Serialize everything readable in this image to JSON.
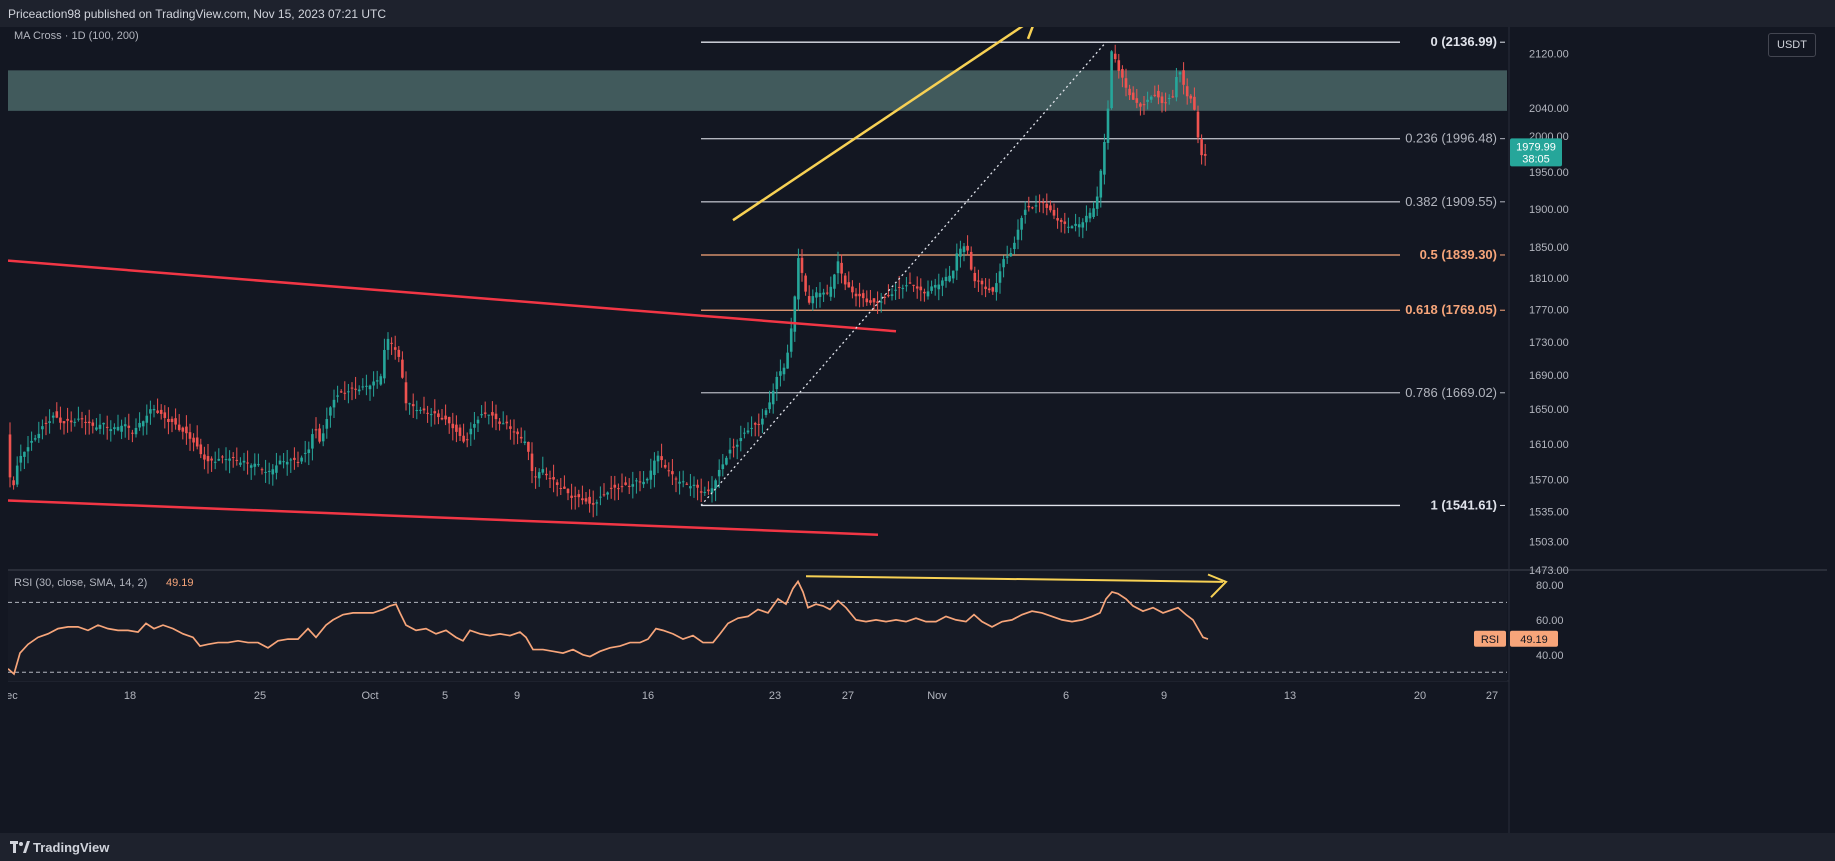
{
  "header": {
    "published": "Priceaction98 published on TradingView.com, Nov 15, 2023 07:21 UTC"
  },
  "footer": {
    "brand": "TradingView"
  },
  "indicator": {
    "ma_label": "MA Cross · 1D (100, 200)"
  },
  "currency_button": "USDT",
  "colors": {
    "background": "#131722",
    "up": "#26a69a",
    "down": "#ef5350",
    "trendline": "#f23645",
    "arrow": "#f7d154",
    "fib_white": "#e0e3eb",
    "fib_orange": "#f7a57a",
    "rsi": "#f7a57a",
    "zone": "#4a6666"
  },
  "chart_data": {
    "type": "candlestick",
    "symbol_quote": "USDT",
    "timeframe": "1D",
    "ylim": [
      1473,
      2160
    ],
    "price_ticks": [
      "2120.00",
      "2040.00",
      "2000.00",
      "1950.00",
      "1900.00",
      "1850.00",
      "1810.00",
      "1770.00",
      "1730.00",
      "1690.00",
      "1650.00",
      "1610.00",
      "1570.00",
      "1535.00",
      "1503.00",
      "1473.00"
    ],
    "date_ticks": [
      "18",
      "25",
      "Oct",
      "5",
      "9",
      "16",
      "23",
      "27",
      "Nov",
      "6",
      "9",
      "13",
      "20",
      "27",
      "Dec"
    ],
    "last_price": "1979.99",
    "countdown": "38:05",
    "fib_levels": [
      {
        "label": "0 (2136.99)",
        "price": 2136.99,
        "color": "#e0e3eb",
        "bold": true
      },
      {
        "label": "0.236 (1996.48)",
        "price": 1996.48,
        "color": "#b2b5be",
        "bold": false
      },
      {
        "label": "0.382 (1909.55)",
        "price": 1909.55,
        "color": "#b2b5be",
        "bold": false
      },
      {
        "label": "0.5 (1839.30)",
        "price": 1839.3,
        "color": "#f7a57a",
        "bold": true
      },
      {
        "label": "0.618 (1769.05)",
        "price": 1769.05,
        "color": "#f7a57a",
        "bold": true
      },
      {
        "label": "0.786 (1669.02)",
        "price": 1669.02,
        "color": "#b2b5be",
        "bold": false
      },
      {
        "label": "1 (1541.61)",
        "price": 1541.61,
        "color": "#e0e3eb",
        "bold": true
      }
    ],
    "resistance_zone": [
      2036,
      2095
    ],
    "price_path": [
      [
        0,
        1620
      ],
      [
        3,
        1548
      ],
      [
        8,
        1582
      ],
      [
        15,
        1600
      ],
      [
        25,
        1612
      ],
      [
        35,
        1628
      ],
      [
        45,
        1640
      ],
      [
        55,
        1632
      ],
      [
        65,
        1635
      ],
      [
        75,
        1638
      ],
      [
        85,
        1630
      ],
      [
        95,
        1634
      ],
      [
        105,
        1628
      ],
      [
        115,
        1635
      ],
      [
        125,
        1625
      ],
      [
        135,
        1638
      ],
      [
        145,
        1652
      ],
      [
        155,
        1640
      ],
      [
        165,
        1632
      ],
      [
        175,
        1622
      ],
      [
        185,
        1612
      ],
      [
        192,
        1598
      ],
      [
        200,
        1588
      ],
      [
        210,
        1592
      ],
      [
        220,
        1595
      ],
      [
        230,
        1592
      ],
      [
        240,
        1590
      ],
      [
        250,
        1588
      ],
      [
        260,
        1578
      ],
      [
        270,
        1590
      ],
      [
        280,
        1592
      ],
      [
        290,
        1590
      ],
      [
        300,
        1600
      ],
      [
        306,
        1628
      ],
      [
        312,
        1610
      ],
      [
        318,
        1632
      ],
      [
        325,
        1660
      ],
      [
        335,
        1668
      ],
      [
        345,
        1672
      ],
      [
        355,
        1675
      ],
      [
        365,
        1682
      ],
      [
        372,
        1685
      ],
      [
        378,
        1735
      ],
      [
        385,
        1730
      ],
      [
        392,
        1708
      ],
      [
        398,
        1660
      ],
      [
        405,
        1654
      ],
      [
        415,
        1648
      ],
      [
        425,
        1644
      ],
      [
        435,
        1638
      ],
      [
        445,
        1628
      ],
      [
        450,
        1618
      ],
      [
        458,
        1610
      ],
      [
        465,
        1630
      ],
      [
        472,
        1640
      ],
      [
        480,
        1645
      ],
      [
        490,
        1635
      ],
      [
        500,
        1632
      ],
      [
        510,
        1620
      ],
      [
        518,
        1615
      ],
      [
        525,
        1575
      ],
      [
        535,
        1582
      ],
      [
        545,
        1570
      ],
      [
        555,
        1560
      ],
      [
        565,
        1550
      ],
      [
        575,
        1548
      ],
      [
        582,
        1540
      ],
      [
        590,
        1545
      ],
      [
        600,
        1556
      ],
      [
        610,
        1560
      ],
      [
        620,
        1562
      ],
      [
        630,
        1568
      ],
      [
        640,
        1570
      ],
      [
        648,
        1600
      ],
      [
        655,
        1590
      ],
      [
        665,
        1575
      ],
      [
        675,
        1568
      ],
      [
        685,
        1565
      ],
      [
        693,
        1558
      ],
      [
        700,
        1555
      ],
      [
        705,
        1563
      ],
      [
        712,
        1580
      ],
      [
        720,
        1598
      ],
      [
        730,
        1610
      ],
      [
        740,
        1625
      ],
      [
        750,
        1630
      ],
      [
        760,
        1650
      ],
      [
        768,
        1685
      ],
      [
        778,
        1705
      ],
      [
        785,
        1760
      ],
      [
        790,
        1840
      ],
      [
        795,
        1810
      ],
      [
        800,
        1780
      ],
      [
        810,
        1795
      ],
      [
        820,
        1790
      ],
      [
        830,
        1830
      ],
      [
        838,
        1800
      ],
      [
        845,
        1790
      ],
      [
        855,
        1782
      ],
      [
        865,
        1775
      ],
      [
        875,
        1780
      ],
      [
        885,
        1790
      ],
      [
        895,
        1798
      ],
      [
        905,
        1802
      ],
      [
        915,
        1790
      ],
      [
        925,
        1800
      ],
      [
        935,
        1808
      ],
      [
        945,
        1820
      ],
      [
        950,
        1848
      ],
      [
        958,
        1855
      ],
      [
        965,
        1810
      ],
      [
        975,
        1800
      ],
      [
        985,
        1790
      ],
      [
        995,
        1830
      ],
      [
        1005,
        1845
      ],
      [
        1015,
        1895
      ],
      [
        1025,
        1902
      ],
      [
        1035,
        1908
      ],
      [
        1045,
        1892
      ],
      [
        1055,
        1880
      ],
      [
        1065,
        1878
      ],
      [
        1075,
        1885
      ],
      [
        1085,
        1902
      ],
      [
        1090,
        1920
      ],
      [
        1096,
        1990
      ],
      [
        1100,
        2040
      ],
      [
        1104,
        2132
      ],
      [
        1110,
        2098
      ],
      [
        1118,
        2070
      ],
      [
        1125,
        2050
      ],
      [
        1135,
        2040
      ],
      [
        1145,
        2060
      ],
      [
        1155,
        2045
      ],
      [
        1165,
        2055
      ],
      [
        1170,
        2100
      ],
      [
        1178,
        2060
      ],
      [
        1185,
        2050
      ],
      [
        1190,
        2000
      ],
      [
        1195,
        1965
      ],
      [
        1200,
        1980
      ]
    ],
    "rsi": {
      "label": "RSI (30, close, SMA, 14, 2)",
      "value": "49.19",
      "tag": "RSI",
      "ticks": [
        "80.00",
        "60.00",
        "40.00"
      ],
      "ylim": [
        25,
        88
      ],
      "bands": [
        70,
        30
      ],
      "path": [
        [
          0,
          32
        ],
        [
          6,
          29
        ],
        [
          12,
          41
        ],
        [
          20,
          46
        ],
        [
          30,
          50
        ],
        [
          40,
          52
        ],
        [
          50,
          55
        ],
        [
          60,
          56
        ],
        [
          70,
          56
        ],
        [
          80,
          54
        ],
        [
          90,
          57
        ],
        [
          100,
          55
        ],
        [
          110,
          54
        ],
        [
          120,
          54
        ],
        [
          130,
          53
        ],
        [
          138,
          58
        ],
        [
          146,
          55
        ],
        [
          155,
          57
        ],
        [
          165,
          55
        ],
        [
          175,
          52
        ],
        [
          185,
          50
        ],
        [
          192,
          45
        ],
        [
          200,
          46
        ],
        [
          210,
          47
        ],
        [
          220,
          47
        ],
        [
          230,
          48
        ],
        [
          240,
          47
        ],
        [
          250,
          47
        ],
        [
          260,
          44
        ],
        [
          270,
          48
        ],
        [
          280,
          49
        ],
        [
          290,
          49
        ],
        [
          300,
          55
        ],
        [
          308,
          50
        ],
        [
          318,
          57
        ],
        [
          325,
          60
        ],
        [
          335,
          63
        ],
        [
          345,
          64
        ],
        [
          355,
          64
        ],
        [
          365,
          64
        ],
        [
          375,
          66
        ],
        [
          382,
          68
        ],
        [
          388,
          69
        ],
        [
          392,
          64
        ],
        [
          398,
          57
        ],
        [
          408,
          54
        ],
        [
          418,
          55
        ],
        [
          428,
          52
        ],
        [
          438,
          54
        ],
        [
          448,
          50
        ],
        [
          455,
          48
        ],
        [
          462,
          54
        ],
        [
          472,
          52
        ],
        [
          482,
          51
        ],
        [
          492,
          52
        ],
        [
          502,
          51
        ],
        [
          512,
          53
        ],
        [
          518,
          50
        ],
        [
          525,
          43
        ],
        [
          535,
          43
        ],
        [
          545,
          42
        ],
        [
          555,
          41
        ],
        [
          565,
          43
        ],
        [
          575,
          40
        ],
        [
          582,
          39
        ],
        [
          592,
          42
        ],
        [
          602,
          44
        ],
        [
          612,
          45
        ],
        [
          622,
          47
        ],
        [
          632,
          47
        ],
        [
          640,
          49
        ],
        [
          648,
          55
        ],
        [
          655,
          54
        ],
        [
          665,
          52
        ],
        [
          675,
          49
        ],
        [
          685,
          51
        ],
        [
          695,
          47
        ],
        [
          705,
          47
        ],
        [
          712,
          52
        ],
        [
          720,
          58
        ],
        [
          730,
          61
        ],
        [
          740,
          62
        ],
        [
          750,
          66
        ],
        [
          760,
          64
        ],
        [
          770,
          72
        ],
        [
          778,
          69
        ],
        [
          785,
          78
        ],
        [
          790,
          82
        ],
        [
          795,
          76
        ],
        [
          800,
          67
        ],
        [
          808,
          69
        ],
        [
          815,
          68
        ],
        [
          822,
          66
        ],
        [
          830,
          71
        ],
        [
          838,
          67
        ],
        [
          848,
          60
        ],
        [
          858,
          59
        ],
        [
          868,
          60
        ],
        [
          878,
          59
        ],
        [
          888,
          60
        ],
        [
          898,
          59
        ],
        [
          908,
          61
        ],
        [
          918,
          59
        ],
        [
          928,
          59
        ],
        [
          938,
          62
        ],
        [
          948,
          60
        ],
        [
          958,
          59
        ],
        [
          966,
          63
        ],
        [
          974,
          59
        ],
        [
          984,
          56
        ],
        [
          994,
          59
        ],
        [
          1004,
          60
        ],
        [
          1014,
          63
        ],
        [
          1024,
          65
        ],
        [
          1034,
          64
        ],
        [
          1044,
          62
        ],
        [
          1054,
          60
        ],
        [
          1064,
          59
        ],
        [
          1074,
          60
        ],
        [
          1084,
          62
        ],
        [
          1092,
          64
        ],
        [
          1098,
          72
        ],
        [
          1104,
          76
        ],
        [
          1110,
          75
        ],
        [
          1118,
          72
        ],
        [
          1125,
          68
        ],
        [
          1135,
          65
        ],
        [
          1145,
          67
        ],
        [
          1155,
          64
        ],
        [
          1165,
          66
        ],
        [
          1170,
          67
        ],
        [
          1178,
          63
        ],
        [
          1185,
          60
        ],
        [
          1190,
          55
        ],
        [
          1195,
          50
        ],
        [
          1200,
          49
        ]
      ]
    }
  }
}
